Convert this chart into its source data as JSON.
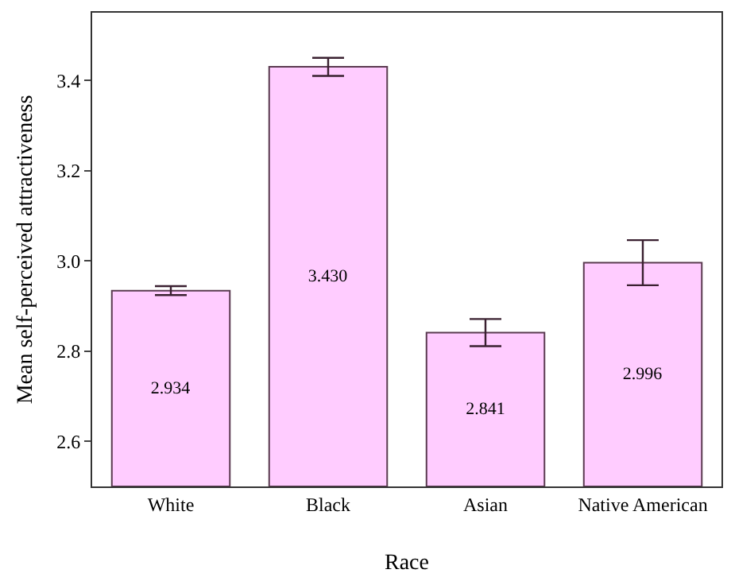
{
  "chart_data": {
    "type": "bar",
    "xlabel": "Race",
    "ylabel": "Mean self-perceived attractiveness",
    "categories": [
      "White",
      "Black",
      "Asian",
      "Native American"
    ],
    "values": [
      2.934,
      3.43,
      2.841,
      2.996
    ],
    "value_labels": [
      "2.934",
      "3.430",
      "2.841",
      "2.996"
    ],
    "errors": [
      0.01,
      0.02,
      0.03,
      0.05
    ],
    "color": "#ffccff",
    "ylim": [
      2.5,
      3.55
    ],
    "yticks": [
      2.6,
      2.8,
      {
        "value": 3.0,
        "label": "3.0"
      },
      3.2,
      3.4
    ],
    "grid": false
  }
}
